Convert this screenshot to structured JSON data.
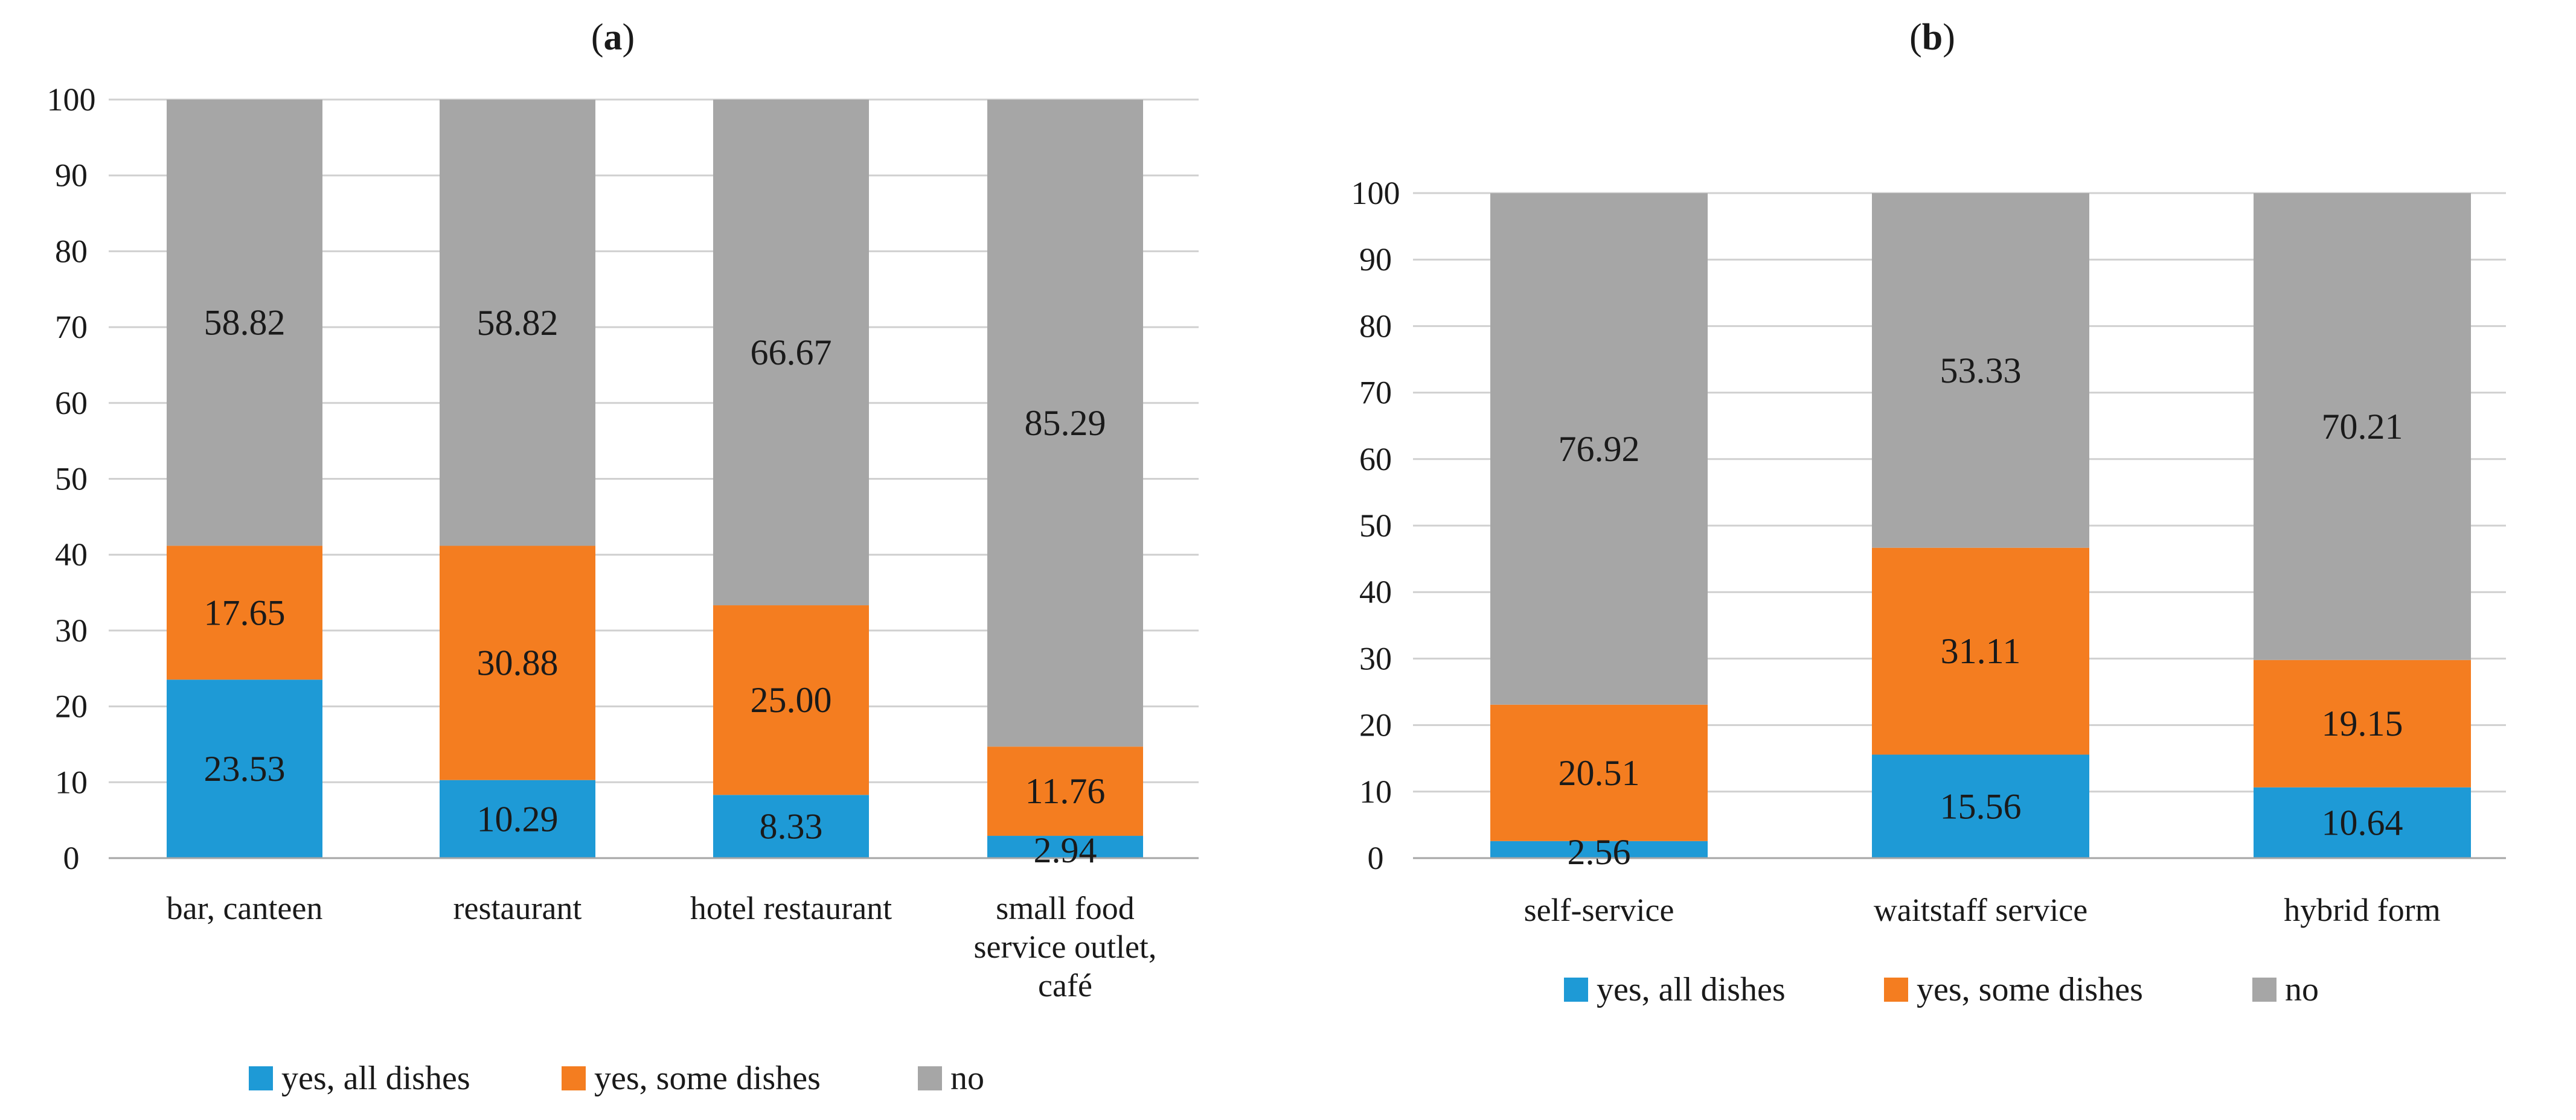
{
  "colors": {
    "yes_all": "#1e9ad6",
    "yes_some": "#f47d20",
    "no": "#a6a6a6",
    "grid": "#d0d0d0",
    "axis": "#a6a6a6",
    "text": "#1a1a1a"
  },
  "chart_data": [
    {
      "type": "bar",
      "stacked": true,
      "panel_label": "(a)",
      "title": "(a)",
      "categories": [
        "bar, canteen",
        "restaurant",
        "hotel restaurant",
        "small food service outlet, café"
      ],
      "category_lines": [
        [
          "bar, canteen"
        ],
        [
          "restaurant"
        ],
        [
          "hotel restaurant"
        ],
        [
          "small food",
          "service outlet,",
          "café"
        ]
      ],
      "series": [
        {
          "name": "yes, all dishes",
          "key": "yes_all",
          "values": [
            23.53,
            10.29,
            8.33,
            2.94
          ],
          "labels": [
            "23.53",
            "10.29",
            "8.33",
            "2.94"
          ]
        },
        {
          "name": "yes, some dishes",
          "key": "yes_some",
          "values": [
            17.65,
            30.88,
            25.0,
            11.76
          ],
          "labels": [
            "17.65",
            "30.88",
            "25.00",
            "11.76"
          ]
        },
        {
          "name": "no",
          "key": "no",
          "values": [
            58.82,
            58.82,
            66.67,
            85.29
          ],
          "labels": [
            "58.82",
            "58.82",
            "66.67",
            "85.29"
          ]
        }
      ],
      "y_ticks": [
        "0",
        "10",
        "20",
        "30",
        "40",
        "50",
        "60",
        "70",
        "80",
        "90",
        "100"
      ],
      "ylim": [
        0,
        100
      ],
      "grid": true,
      "legend_position": "bottom"
    },
    {
      "type": "bar",
      "stacked": true,
      "panel_label": "(b)",
      "title": "(b)",
      "categories": [
        "self-service",
        "waitstaff service",
        "hybrid form"
      ],
      "category_lines": [
        [
          "self-service"
        ],
        [
          "waitstaff service"
        ],
        [
          "hybrid form"
        ]
      ],
      "series": [
        {
          "name": "yes, all dishes",
          "key": "yes_all",
          "values": [
            2.56,
            15.56,
            10.64
          ],
          "labels": [
            "2.56",
            "15.56",
            "10.64"
          ]
        },
        {
          "name": "yes, some dishes",
          "key": "yes_some",
          "values": [
            20.51,
            31.11,
            19.15
          ],
          "labels": [
            "20.51",
            "31.11",
            "19.15"
          ]
        },
        {
          "name": "no",
          "key": "no",
          "values": [
            76.92,
            53.33,
            70.21
          ],
          "labels": [
            "76.92",
            "53.33",
            "70.21"
          ]
        }
      ],
      "y_ticks": [
        "0",
        "10",
        "20",
        "30",
        "40",
        "50",
        "60",
        "70",
        "80",
        "90",
        "100"
      ],
      "ylim": [
        0,
        100
      ],
      "grid": true,
      "legend_position": "bottom"
    }
  ]
}
